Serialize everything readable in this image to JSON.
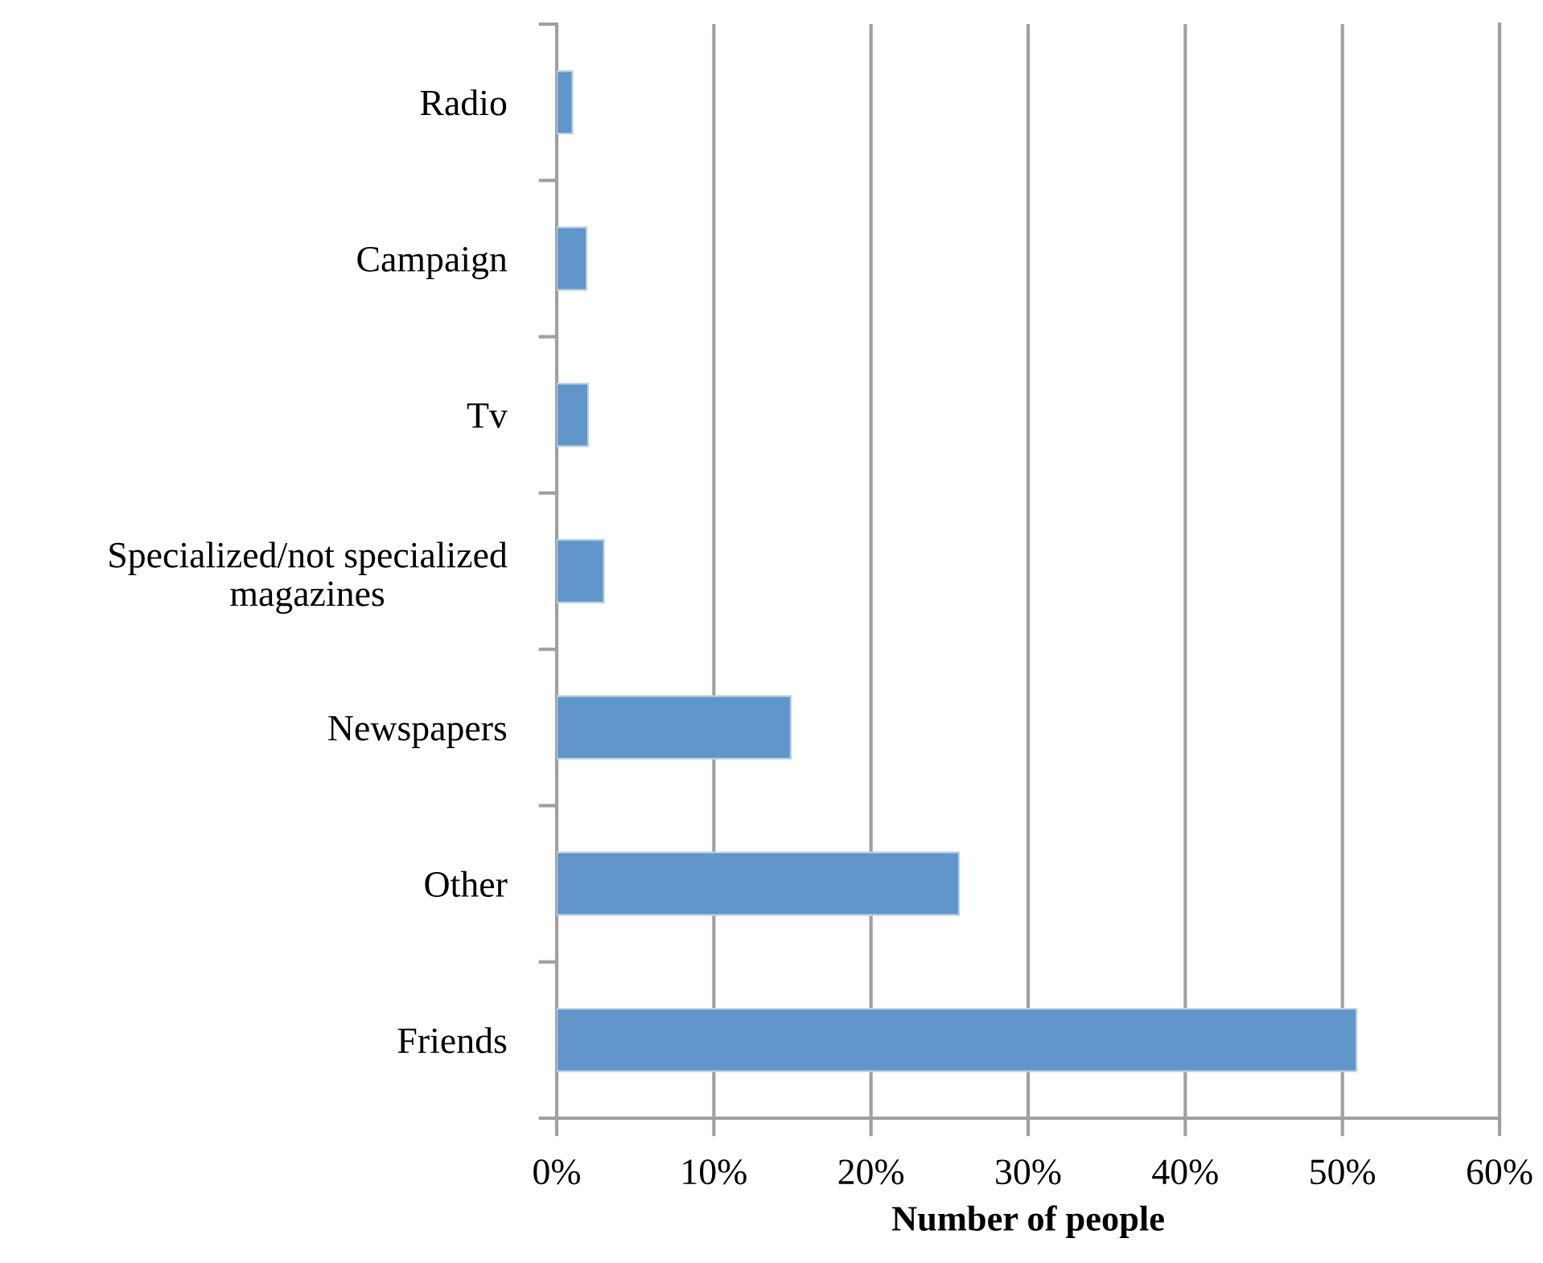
{
  "chart_data": {
    "type": "bar",
    "orientation": "horizontal",
    "xlabel": "Number of people",
    "categories": [
      "Radio",
      "Campaign",
      "Tv",
      "Specialized/not specialized\nmagazines",
      "Newspapers",
      "Other",
      "Friends"
    ],
    "values": [
      1.0,
      1.9,
      2.0,
      3.0,
      14.9,
      25.6,
      50.9
    ],
    "color": "#6096c9",
    "xlim": [
      0,
      60
    ],
    "xticks": [
      {
        "value": 0,
        "label": "0%"
      },
      {
        "value": 10,
        "label": "10%"
      },
      {
        "value": 20,
        "label": "20%"
      },
      {
        "value": 30,
        "label": "30%"
      },
      {
        "value": 40,
        "label": "40%"
      },
      {
        "value": 50,
        "label": "50%"
      },
      {
        "value": 60,
        "label": "60%"
      }
    ],
    "grid": "x"
  }
}
